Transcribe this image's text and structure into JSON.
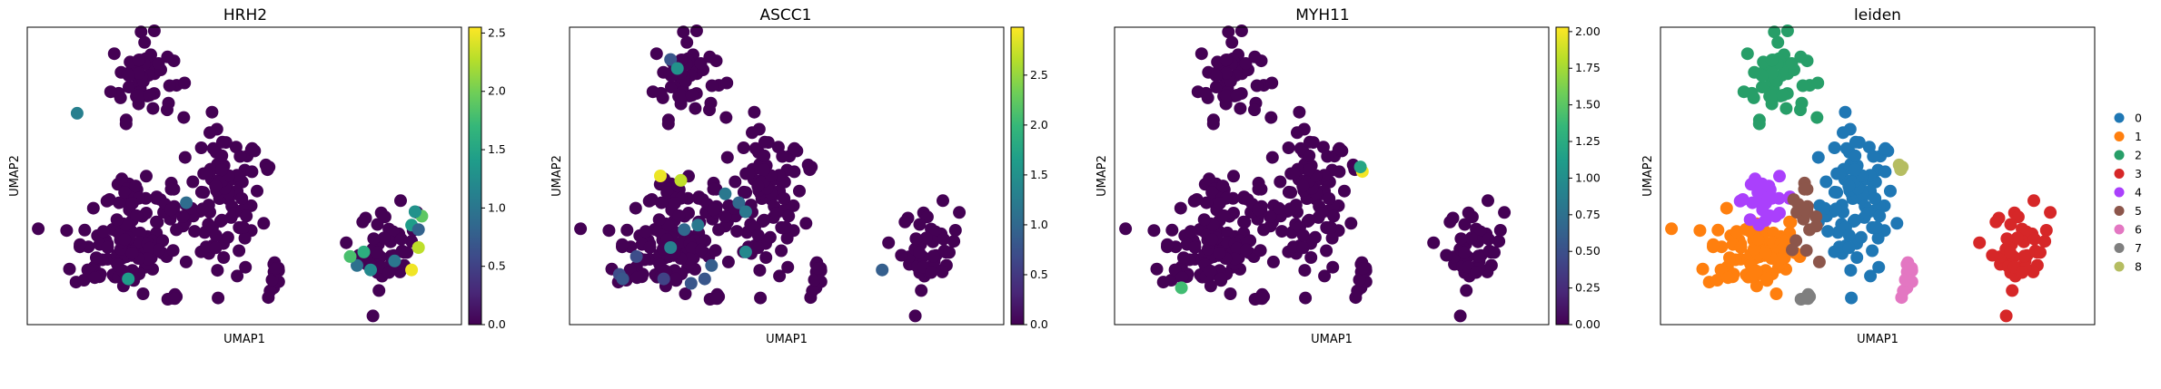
{
  "colormap": [
    "#440154",
    "#482878",
    "#3e4989",
    "#31688e",
    "#26828e",
    "#1f9e89",
    "#35b779",
    "#6ece58",
    "#b5de2b",
    "#fde725"
  ],
  "leiden_palette": [
    "#1f77b4",
    "#ff7f0e",
    "#279e68",
    "#d62728",
    "#aa40fc",
    "#8c564b",
    "#e377c2",
    "#7f7f7f",
    "#b5bd61"
  ],
  "chart_data": [
    {
      "type": "scatter",
      "title": "HRH2",
      "xlabel": "UMAP1",
      "ylabel": "UMAP2",
      "colorbar": {
        "min": 0,
        "max": 2.55,
        "ticks": [
          "0.0",
          "0.5",
          "1.0",
          "1.5",
          "2.0",
          "2.5"
        ],
        "tick_values": [
          0,
          0.5,
          1,
          1.5,
          2,
          2.5
        ]
      },
      "highlight_points": [
        {
          "x": 0.45,
          "y": 0.82,
          "value": 1.1
        },
        {
          "x": 2.05,
          "y": 0.62,
          "value": 0.9
        },
        {
          "x": 4.65,
          "y": 0.51,
          "value": 1.6
        },
        {
          "x": 4.75,
          "y": 0.47,
          "value": 1.2
        },
        {
          "x": 4.55,
          "y": 0.48,
          "value": 0.95
        },
        {
          "x": 5.1,
          "y": 0.49,
          "value": 1.0
        },
        {
          "x": 5.35,
          "y": 0.57,
          "value": 1.4
        },
        {
          "x": 5.35,
          "y": 0.47,
          "value": 2.5
        },
        {
          "x": 5.45,
          "y": 0.52,
          "value": 2.3
        },
        {
          "x": 5.45,
          "y": 0.56,
          "value": 0.8
        },
        {
          "x": 5.5,
          "y": 0.59,
          "value": 1.9
        },
        {
          "x": 5.4,
          "y": 0.6,
          "value": 1.3
        },
        {
          "x": 1.2,
          "y": 0.45,
          "value": 1.4
        },
        {
          "x": 4.45,
          "y": 0.5,
          "value": 1.8
        }
      ]
    },
    {
      "type": "scatter",
      "title": "ASCC1",
      "xlabel": "UMAP1",
      "ylabel": "UMAP2",
      "colorbar": {
        "min": 0,
        "max": 2.98,
        "ticks": [
          "0.0",
          "0.5",
          "1.0",
          "1.5",
          "2.0",
          "2.5"
        ],
        "tick_values": [
          0,
          0.5,
          1,
          1.5,
          2,
          2.5
        ]
      },
      "highlight_points": [
        {
          "x": 1.2,
          "y": 0.94,
          "value": 0.8
        },
        {
          "x": 1.3,
          "y": 0.92,
          "value": 1.5
        },
        {
          "x": 1.05,
          "y": 0.68,
          "value": 2.9
        },
        {
          "x": 1.35,
          "y": 0.67,
          "value": 2.7
        },
        {
          "x": 2.0,
          "y": 0.64,
          "value": 1.2
        },
        {
          "x": 2.2,
          "y": 0.62,
          "value": 1.0
        },
        {
          "x": 2.3,
          "y": 0.6,
          "value": 1.2
        },
        {
          "x": 1.4,
          "y": 0.56,
          "value": 1.0
        },
        {
          "x": 1.2,
          "y": 0.52,
          "value": 1.3
        },
        {
          "x": 1.6,
          "y": 0.57,
          "value": 1.2
        },
        {
          "x": 0.7,
          "y": 0.5,
          "value": 0.7
        },
        {
          "x": 0.45,
          "y": 0.46,
          "value": 0.7
        },
        {
          "x": 0.5,
          "y": 0.45,
          "value": 0.8
        },
        {
          "x": 1.5,
          "y": 0.44,
          "value": 0.8
        },
        {
          "x": 1.7,
          "y": 0.45,
          "value": 0.8
        },
        {
          "x": 1.8,
          "y": 0.48,
          "value": 0.9
        },
        {
          "x": 1.1,
          "y": 0.45,
          "value": 0.6
        },
        {
          "x": 2.3,
          "y": 0.51,
          "value": 1.4
        },
        {
          "x": 4.3,
          "y": 0.47,
          "value": 0.9
        }
      ]
    },
    {
      "type": "scatter",
      "title": "MYH11",
      "xlabel": "UMAP1",
      "ylabel": "UMAP2",
      "colorbar": {
        "min": 0,
        "max": 2.03,
        "ticks": [
          "0.00",
          "0.25",
          "0.50",
          "0.75",
          "1.00",
          "1.25",
          "1.50",
          "1.75",
          "2.00"
        ],
        "tick_values": [
          0,
          0.25,
          0.5,
          0.75,
          1,
          1.25,
          1.5,
          1.75,
          2
        ]
      },
      "highlight_points": [
        {
          "x": 3.35,
          "y": 0.69,
          "value": 2.0
        },
        {
          "x": 3.32,
          "y": 0.7,
          "value": 1.2
        },
        {
          "x": 0.7,
          "y": 0.43,
          "value": 1.4
        }
      ]
    },
    {
      "type": "scatter",
      "title": "leiden",
      "xlabel": "UMAP1",
      "ylabel": "UMAP2",
      "legend": {
        "placement": "right",
        "entries": [
          "0",
          "1",
          "2",
          "3",
          "4",
          "5",
          "6",
          "7",
          "8"
        ]
      },
      "clusters": [
        {
          "name": "0",
          "center": [
            2.6,
            0.62
          ],
          "spread": [
            0.55,
            0.09
          ],
          "n": 95
        },
        {
          "name": "1",
          "center": [
            1.1,
            0.51
          ],
          "spread": [
            0.7,
            0.05
          ],
          "n": 85
        },
        {
          "name": "2",
          "center": [
            1.4,
            0.9
          ],
          "spread": [
            0.45,
            0.05
          ],
          "n": 55
        },
        {
          "name": "3",
          "center": [
            5.0,
            0.52
          ],
          "spread": [
            0.42,
            0.05
          ],
          "n": 45
        },
        {
          "name": "4",
          "center": [
            1.25,
            0.63
          ],
          "spread": [
            0.45,
            0.025
          ],
          "n": 28
        },
        {
          "name": "5",
          "center": [
            1.8,
            0.58
          ],
          "spread": [
            0.22,
            0.04
          ],
          "n": 18
        },
        {
          "name": "6",
          "center": [
            3.35,
            0.45
          ],
          "spread": [
            0.1,
            0.025
          ],
          "n": 12
        },
        {
          "name": "7",
          "center": [
            1.85,
            0.41
          ],
          "spread": [
            0.09,
            0.01
          ],
          "n": 6
        },
        {
          "name": "8",
          "center": [
            3.25,
            0.7
          ],
          "spread": [
            0.05,
            0.006
          ],
          "n": 5
        }
      ]
    }
  ]
}
